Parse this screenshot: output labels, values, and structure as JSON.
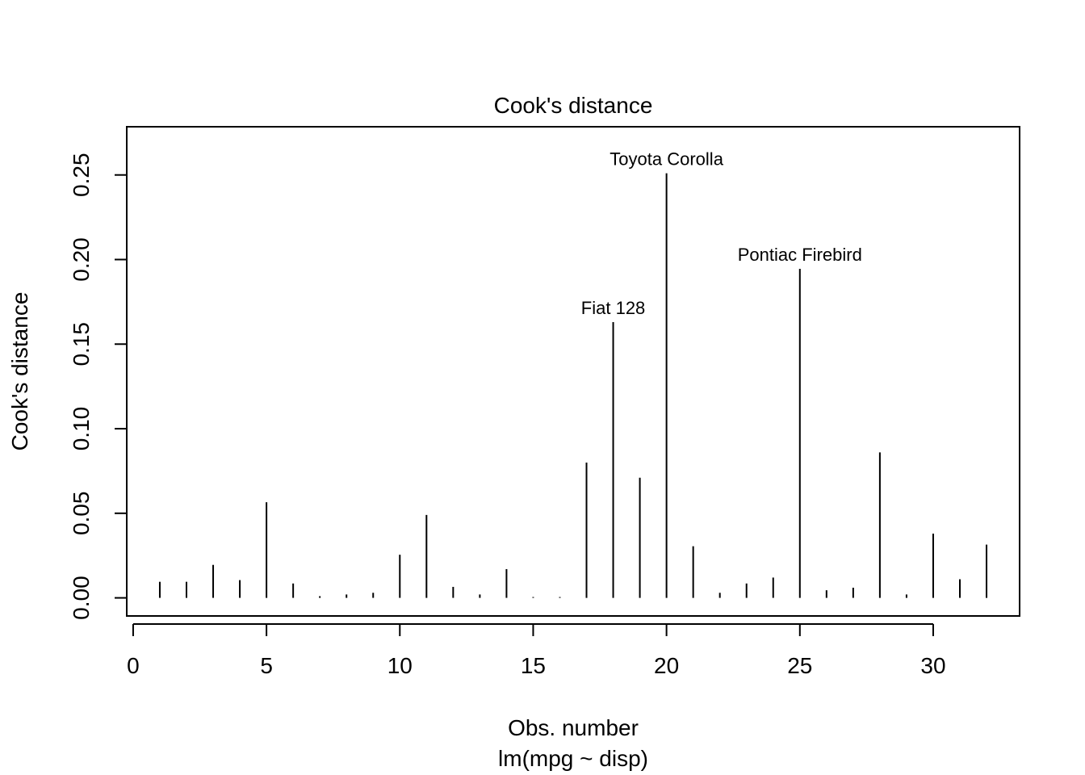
{
  "chart_data": {
    "type": "bar",
    "subtype": "stem",
    "title": "Cook's distance",
    "xlabel": "Obs. number",
    "sublabel": "lm(mpg ~ disp)",
    "ylabel": "Cook's distance",
    "xlim": [
      -0.24,
      33.24
    ],
    "ylim": [
      -0.0107,
      0.2785
    ],
    "x_ticks": [
      0,
      5,
      10,
      15,
      20,
      25,
      30
    ],
    "y_ticks": [
      0.0,
      0.05,
      0.1,
      0.15,
      0.2,
      0.25
    ],
    "y_tick_labels": [
      "0.00",
      "0.05",
      "0.10",
      "0.15",
      "0.20",
      "0.25"
    ],
    "grid": false,
    "x": [
      1,
      2,
      3,
      4,
      5,
      6,
      7,
      8,
      9,
      10,
      11,
      12,
      13,
      14,
      15,
      16,
      17,
      18,
      19,
      20,
      21,
      22,
      23,
      24,
      25,
      26,
      27,
      28,
      29,
      30,
      31,
      32
    ],
    "values": [
      0.0095,
      0.0095,
      0.0195,
      0.0105,
      0.0565,
      0.0085,
      0.001,
      0.002,
      0.003,
      0.0255,
      0.049,
      0.0065,
      0.002,
      0.017,
      0.0005,
      0.0005,
      0.08,
      0.163,
      0.071,
      0.251,
      0.0305,
      0.003,
      0.0085,
      0.012,
      0.1945,
      0.0045,
      0.006,
      0.086,
      0.002,
      0.038,
      0.011,
      0.0315
    ],
    "annotations": [
      {
        "x": 18,
        "text": "Fiat 128"
      },
      {
        "x": 20,
        "text": "Toyota Corolla"
      },
      {
        "x": 25,
        "text": "Pontiac Firebird"
      }
    ]
  }
}
